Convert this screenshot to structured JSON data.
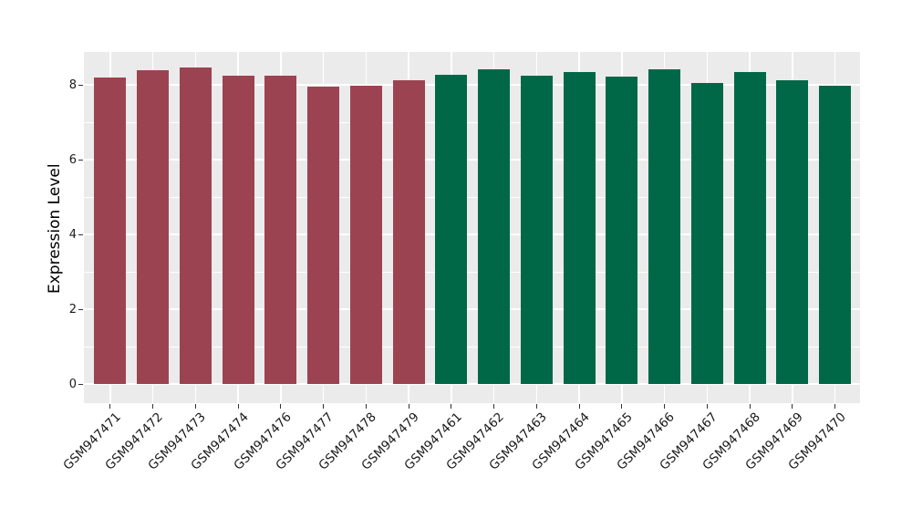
{
  "chart_data": {
    "type": "bar",
    "title": "",
    "xlabel": "",
    "ylabel": "Expression Level",
    "categories": [
      "GSM947471",
      "GSM947472",
      "GSM947473",
      "GSM947474",
      "GSM947476",
      "GSM947477",
      "GSM947478",
      "GSM947479",
      "GSM947461",
      "GSM947462",
      "GSM947463",
      "GSM947464",
      "GSM947465",
      "GSM947466",
      "GSM947467",
      "GSM947468",
      "GSM947469",
      "GSM947470"
    ],
    "values": [
      8.19,
      8.4,
      8.47,
      8.24,
      8.25,
      7.95,
      7.98,
      8.11,
      8.28,
      8.41,
      8.24,
      8.34,
      8.21,
      8.41,
      8.05,
      8.34,
      8.11,
      7.98
    ],
    "bar_colors": [
      "#9C4351",
      "#9C4351",
      "#9C4351",
      "#9C4351",
      "#9C4351",
      "#9C4351",
      "#9C4351",
      "#9C4351",
      "#006847",
      "#006847",
      "#006847",
      "#006847",
      "#006847",
      "#006847",
      "#006847",
      "#006847",
      "#006847",
      "#006847"
    ],
    "group_colors": {
      "left_group_red": "#9C4351",
      "right_group_green": "#006847"
    },
    "yticks": [
      0,
      2,
      4,
      6,
      8
    ],
    "ylim": [
      0,
      8.88
    ],
    "grid": "on",
    "legend": "none",
    "panel_background": "#EBEBEB",
    "grid_color": "#FFFFFF",
    "axis_text_color": "#1a1a1a"
  }
}
